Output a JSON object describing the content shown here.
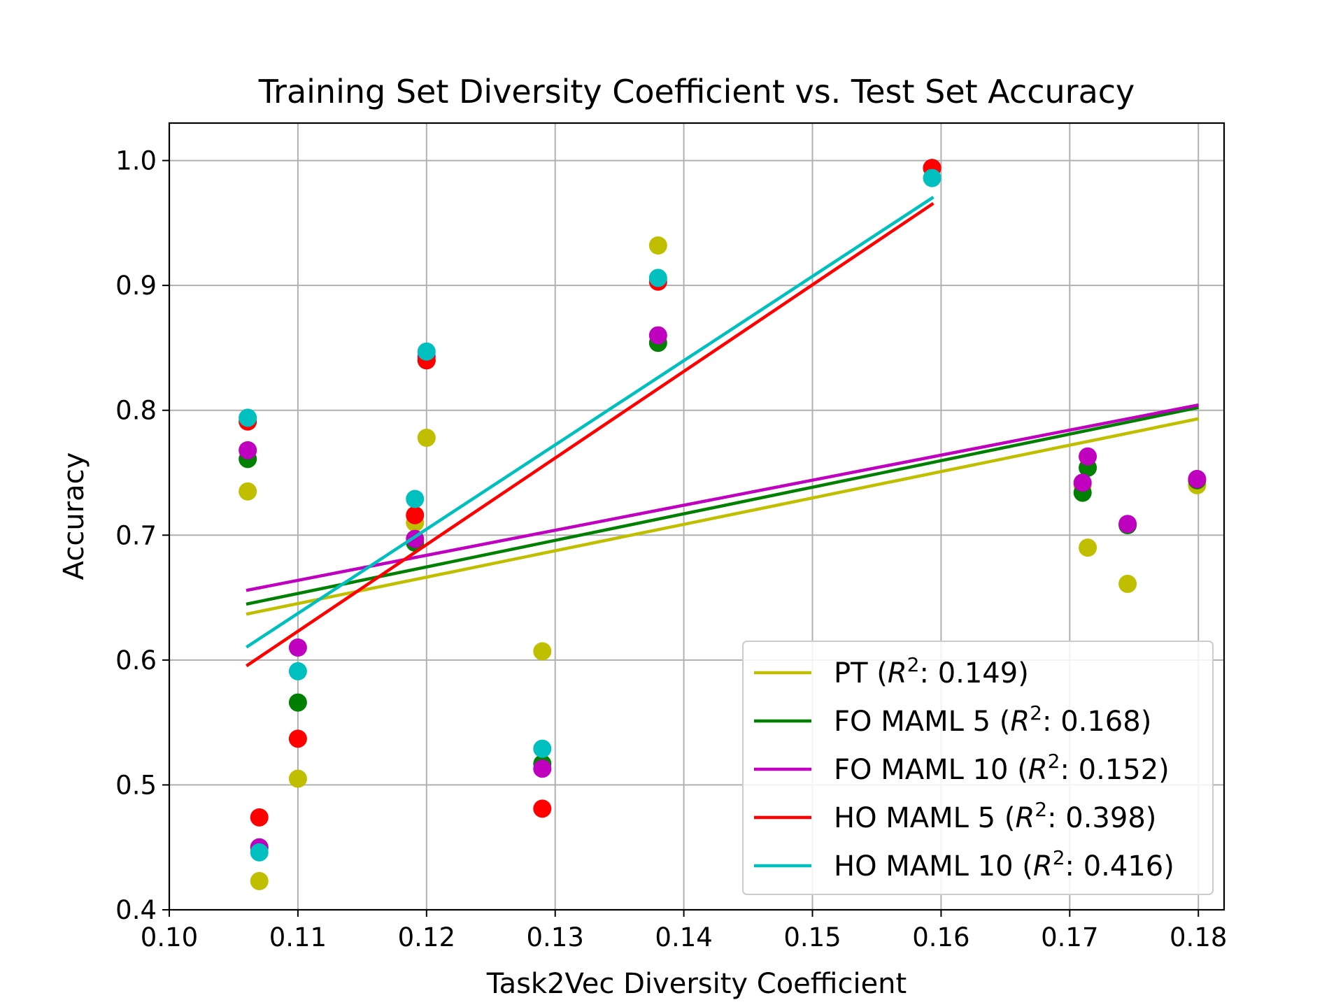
{
  "chart_data": {
    "type": "scatter",
    "title": "Training Set Diversity Coefficient vs. Test Set Accuracy",
    "xlabel": "Task2Vec Diversity Coefficient",
    "ylabel": "Accuracy",
    "xlim": [
      0.1,
      0.182
    ],
    "ylim": [
      0.4,
      1.03
    ],
    "xticks": [
      0.1,
      0.11,
      0.12,
      0.13,
      0.14,
      0.15,
      0.16,
      0.17,
      0.18
    ],
    "xtick_labels": [
      "0.10",
      "0.11",
      "0.12",
      "0.13",
      "0.14",
      "0.15",
      "0.16",
      "0.17",
      "0.18"
    ],
    "yticks": [
      0.4,
      0.5,
      0.6,
      0.7,
      0.8,
      0.9,
      1.0
    ],
    "ytick_labels": [
      "0.4",
      "0.5",
      "0.6",
      "0.7",
      "0.8",
      "0.9",
      "1.0"
    ],
    "grid": true,
    "legend_position": "lower-right",
    "series": [
      {
        "name": "PT",
        "r2": "0.149",
        "color": "#bfbf00",
        "x": [
          0.1061,
          0.107,
          0.11,
          0.1191,
          0.12,
          0.129,
          0.138,
          0.1593,
          0.171,
          0.1714,
          0.1745,
          0.1799
        ],
        "y": [
          0.735,
          0.423,
          0.505,
          0.71,
          0.778,
          0.607,
          0.932,
          0.994,
          0.74,
          0.69,
          0.661,
          0.74
        ],
        "fit": {
          "x": [
            0.1061,
            0.1799
          ],
          "y": [
            0.637,
            0.793
          ]
        }
      },
      {
        "name": "FO MAML 5",
        "r2": "0.168",
        "color": "#008000",
        "x": [
          0.1061,
          0.107,
          0.11,
          0.1191,
          0.12,
          0.129,
          0.138,
          0.1593,
          0.171,
          0.1714,
          0.1745,
          0.1799
        ],
        "y": [
          0.761,
          0.45,
          0.566,
          0.694,
          0.84,
          0.517,
          0.854,
          0.994,
          0.734,
          0.754,
          0.708,
          0.744
        ],
        "fit": {
          "x": [
            0.1061,
            0.1799
          ],
          "y": [
            0.645,
            0.802
          ]
        }
      },
      {
        "name": "FO MAML 10",
        "r2": "0.152",
        "color": "#bf00bf",
        "x": [
          0.1061,
          0.107,
          0.11,
          0.1191,
          0.12,
          0.129,
          0.138,
          0.1593,
          0.171,
          0.1714,
          0.1745,
          0.1799
        ],
        "y": [
          0.768,
          0.45,
          0.61,
          0.697,
          0.843,
          0.513,
          0.86,
          0.994,
          0.742,
          0.763,
          0.709,
          0.745
        ],
        "fit": {
          "x": [
            0.1061,
            0.1799
          ],
          "y": [
            0.656,
            0.804
          ]
        }
      },
      {
        "name": "HO MAML 5",
        "r2": "0.398",
        "color": "#ff0000",
        "x": [
          0.1061,
          0.107,
          0.11,
          0.1191,
          0.12,
          0.129,
          0.138,
          0.1593
        ],
        "y": [
          0.791,
          0.474,
          0.537,
          0.716,
          0.84,
          0.481,
          0.903,
          0.994
        ],
        "fit": {
          "x": [
            0.1061,
            0.1593
          ],
          "y": [
            0.596,
            0.965
          ]
        }
      },
      {
        "name": "HO MAML 10",
        "r2": "0.416",
        "color": "#00bfbf",
        "x": [
          0.1061,
          0.107,
          0.11,
          0.1191,
          0.12,
          0.129,
          0.138,
          0.1593
        ],
        "y": [
          0.794,
          0.446,
          0.591,
          0.729,
          0.847,
          0.529,
          0.906,
          0.986
        ],
        "fit": {
          "x": [
            0.1061,
            0.1593
          ],
          "y": [
            0.611,
            0.97
          ]
        }
      }
    ]
  }
}
